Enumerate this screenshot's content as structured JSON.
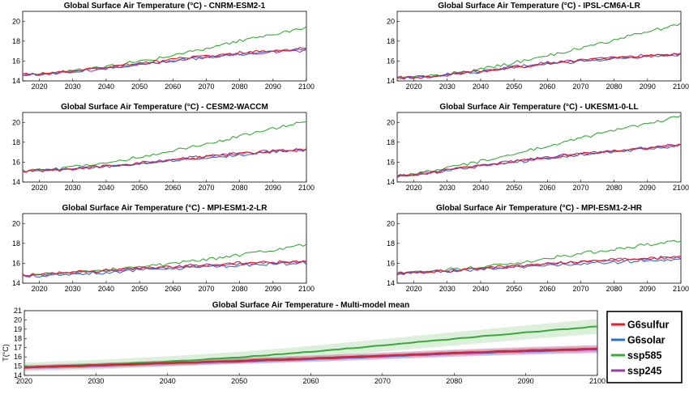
{
  "chart_data": [
    {
      "type": "line",
      "title": "Global Surface Air Temperature (°C) - CNRM-ESM2-1",
      "x": [
        2015,
        2020,
        2030,
        2040,
        2050,
        2060,
        2070,
        2080,
        2090,
        2100
      ],
      "xlim": [
        2015,
        2100
      ],
      "ylim": [
        14,
        21
      ],
      "xticks": [
        "2020",
        "2030",
        "2040",
        "2050",
        "2060",
        "2070",
        "2080",
        "2090",
        "2100"
      ],
      "yticks": [
        "14",
        "16",
        "18",
        "20"
      ],
      "series": [
        {
          "name": "G6sulfur",
          "values": [
            14.6,
            14.7,
            15.0,
            15.35,
            15.75,
            16.15,
            16.5,
            16.8,
            17.05,
            17.3
          ]
        },
        {
          "name": "G6solar",
          "values": [
            14.6,
            14.7,
            14.95,
            15.3,
            15.65,
            16.0,
            16.35,
            16.65,
            16.95,
            17.2
          ]
        },
        {
          "name": "ssp585",
          "values": [
            14.6,
            14.75,
            15.0,
            15.45,
            15.95,
            16.55,
            17.3,
            18.0,
            18.7,
            19.3
          ]
        },
        {
          "name": "ssp245",
          "values": [
            14.6,
            14.7,
            14.95,
            15.3,
            15.7,
            16.05,
            16.4,
            16.7,
            16.9,
            17.1
          ]
        }
      ]
    },
    {
      "type": "line",
      "title": "Global Surface Air Temperature (°C) - IPSL-CM6A-LR",
      "x": [
        2015,
        2020,
        2030,
        2040,
        2050,
        2060,
        2070,
        2080,
        2090,
        2100
      ],
      "xlim": [
        2015,
        2100
      ],
      "ylim": [
        14,
        21
      ],
      "xticks": [
        "2020",
        "2030",
        "2040",
        "2050",
        "2060",
        "2070",
        "2080",
        "2090",
        "2100"
      ],
      "yticks": [
        "14",
        "16",
        "18",
        "20"
      ],
      "series": [
        {
          "name": "G6sulfur",
          "values": [
            14.3,
            14.35,
            14.6,
            15.0,
            15.4,
            15.75,
            16.05,
            16.3,
            16.5,
            16.7
          ]
        },
        {
          "name": "G6solar",
          "values": [
            14.3,
            14.35,
            14.55,
            14.95,
            15.35,
            15.7,
            16.0,
            16.25,
            16.45,
            16.6
          ]
        },
        {
          "name": "ssp585",
          "values": [
            14.3,
            14.4,
            14.7,
            15.2,
            15.8,
            16.5,
            17.3,
            18.1,
            18.9,
            19.7
          ]
        },
        {
          "name": "ssp245",
          "values": [
            14.3,
            14.35,
            14.6,
            15.0,
            15.45,
            15.8,
            16.1,
            16.35,
            16.55,
            16.7
          ]
        }
      ]
    },
    {
      "type": "line",
      "title": "Global Surface Air Temperature (°C) - CESM2-WACCM",
      "x": [
        2015,
        2020,
        2030,
        2040,
        2050,
        2060,
        2070,
        2080,
        2090,
        2100
      ],
      "xlim": [
        2015,
        2100
      ],
      "ylim": [
        14,
        21
      ],
      "xticks": [
        "2020",
        "2030",
        "2040",
        "2050",
        "2060",
        "2070",
        "2080",
        "2090",
        "2100"
      ],
      "yticks": [
        "14",
        "16",
        "18",
        "20"
      ],
      "series": [
        {
          "name": "G6sulfur",
          "values": [
            15.1,
            15.15,
            15.35,
            15.6,
            15.9,
            16.2,
            16.55,
            16.85,
            17.1,
            17.3
          ]
        },
        {
          "name": "G6solar",
          "values": [
            15.1,
            15.15,
            15.3,
            15.55,
            15.85,
            16.15,
            16.45,
            16.75,
            17.0,
            17.25
          ]
        },
        {
          "name": "ssp585",
          "values": [
            15.1,
            15.2,
            15.5,
            15.95,
            16.5,
            17.1,
            17.8,
            18.6,
            19.4,
            20.1
          ]
        },
        {
          "name": "ssp245",
          "values": [
            15.1,
            15.15,
            15.35,
            15.6,
            15.95,
            16.3,
            16.6,
            16.9,
            17.1,
            17.3
          ]
        }
      ]
    },
    {
      "type": "line",
      "title": "Global Surface Air Temperature (°C) - UKESM1-0-LL",
      "x": [
        2015,
        2020,
        2030,
        2040,
        2050,
        2060,
        2070,
        2080,
        2090,
        2100
      ],
      "xlim": [
        2015,
        2100
      ],
      "ylim": [
        14,
        21
      ],
      "xticks": [
        "2020",
        "2030",
        "2040",
        "2050",
        "2060",
        "2070",
        "2080",
        "2090",
        "2100"
      ],
      "yticks": [
        "14",
        "16",
        "18",
        "20"
      ],
      "series": [
        {
          "name": "G6sulfur",
          "values": [
            14.6,
            14.75,
            15.2,
            15.65,
            16.05,
            16.45,
            16.8,
            17.1,
            17.4,
            17.7
          ]
        },
        {
          "name": "G6solar",
          "values": [
            14.6,
            14.75,
            15.15,
            15.6,
            16.0,
            16.4,
            16.75,
            17.05,
            17.35,
            17.65
          ]
        },
        {
          "name": "ssp585",
          "values": [
            14.6,
            14.8,
            15.4,
            16.1,
            16.8,
            17.6,
            18.4,
            19.2,
            19.9,
            20.6
          ]
        },
        {
          "name": "ssp245",
          "values": [
            14.6,
            14.75,
            15.2,
            15.65,
            16.1,
            16.5,
            16.85,
            17.15,
            17.45,
            17.75
          ]
        }
      ]
    },
    {
      "type": "line",
      "title": "Global Surface Air Temperature (°C) - MPI-ESM1-2-LR",
      "x": [
        2015,
        2020,
        2030,
        2040,
        2050,
        2060,
        2070,
        2080,
        2090,
        2100
      ],
      "xlim": [
        2015,
        2100
      ],
      "ylim": [
        14,
        21
      ],
      "xticks": [
        "2020",
        "2030",
        "2040",
        "2050",
        "2060",
        "2070",
        "2080",
        "2090",
        "2100"
      ],
      "yticks": [
        "14",
        "16",
        "18",
        "20"
      ],
      "series": [
        {
          "name": "G6sulfur",
          "values": [
            14.8,
            14.9,
            15.1,
            15.3,
            15.5,
            15.7,
            15.85,
            16.0,
            16.1,
            16.2
          ]
        },
        {
          "name": "G6solar",
          "values": [
            14.7,
            14.75,
            14.9,
            15.1,
            15.3,
            15.5,
            15.65,
            15.8,
            15.95,
            16.05
          ]
        },
        {
          "name": "ssp585",
          "values": [
            14.8,
            14.85,
            15.05,
            15.3,
            15.6,
            16.0,
            16.4,
            16.85,
            17.35,
            17.9
          ]
        },
        {
          "name": "ssp245",
          "values": [
            14.7,
            14.8,
            15.0,
            15.2,
            15.45,
            15.65,
            15.8,
            15.95,
            16.05,
            16.15
          ]
        }
      ]
    },
    {
      "type": "line",
      "title": "Global Surface Air Temperature (°C) - MPI-ESM1-2-HR",
      "x": [
        2015,
        2020,
        2030,
        2040,
        2050,
        2060,
        2070,
        2080,
        2090,
        2100
      ],
      "xlim": [
        2015,
        2100
      ],
      "ylim": [
        14,
        21
      ],
      "xticks": [
        "2020",
        "2030",
        "2040",
        "2050",
        "2060",
        "2070",
        "2080",
        "2090",
        "2100"
      ],
      "yticks": [
        "14",
        "16",
        "18",
        "20"
      ],
      "series": [
        {
          "name": "G6sulfur",
          "values": [
            15.0,
            15.05,
            15.25,
            15.45,
            15.7,
            15.95,
            16.15,
            16.35,
            16.5,
            16.6
          ]
        },
        {
          "name": "G6solar",
          "values": [
            15.0,
            15.05,
            15.2,
            15.4,
            15.6,
            15.8,
            15.95,
            16.1,
            16.25,
            16.35
          ]
        },
        {
          "name": "ssp585",
          "values": [
            15.0,
            15.1,
            15.35,
            15.65,
            16.05,
            16.5,
            16.95,
            17.4,
            17.85,
            18.3
          ]
        },
        {
          "name": "ssp245",
          "values": [
            15.0,
            15.05,
            15.25,
            15.45,
            15.7,
            15.95,
            16.15,
            16.35,
            16.5,
            16.6
          ]
        }
      ]
    },
    {
      "type": "line",
      "title": "Global Surface Air Temperature - Multi-model mean",
      "ylabel": "T(°C)",
      "x": [
        2020,
        2030,
        2040,
        2050,
        2060,
        2070,
        2080,
        2090,
        2100
      ],
      "xlim": [
        2020,
        2100
      ],
      "ylim": [
        14,
        21
      ],
      "xticks": [
        "2020",
        "2030",
        "2040",
        "2050",
        "2060",
        "2070",
        "2080",
        "2090",
        "2100"
      ],
      "yticks": [
        "14",
        "15",
        "16",
        "17",
        "18",
        "19",
        "20",
        "21"
      ],
      "series": [
        {
          "name": "G6sulfur",
          "values": [
            14.9,
            15.1,
            15.35,
            15.6,
            15.85,
            16.15,
            16.45,
            16.7,
            16.9
          ],
          "spread": 0.35
        },
        {
          "name": "G6solar",
          "values": [
            14.85,
            15.05,
            15.3,
            15.5,
            15.75,
            16.05,
            16.35,
            16.6,
            16.8
          ],
          "spread": 0.35
        },
        {
          "name": "ssp585",
          "values": [
            14.9,
            15.15,
            15.5,
            15.95,
            16.55,
            17.25,
            17.95,
            18.65,
            19.3
          ],
          "spread": 0.8
        },
        {
          "name": "ssp245",
          "values": [
            14.85,
            15.05,
            15.3,
            15.55,
            15.8,
            16.1,
            16.4,
            16.65,
            16.85
          ],
          "spread": 0.45
        }
      ],
      "legend": {
        "placement": "right",
        "entries": [
          {
            "label": "G6sulfur",
            "color": "#e0202a"
          },
          {
            "label": "G6solar",
            "color": "#2a73c8"
          },
          {
            "label": "ssp585",
            "color": "#3aa83a"
          },
          {
            "label": "ssp245",
            "color": "#9a3aae"
          }
        ]
      }
    }
  ],
  "colors": {
    "G6sulfur": "#e0202a",
    "G6solar": "#2a73c8",
    "ssp585": "#3aa83a",
    "ssp245": "#9a3aae"
  }
}
